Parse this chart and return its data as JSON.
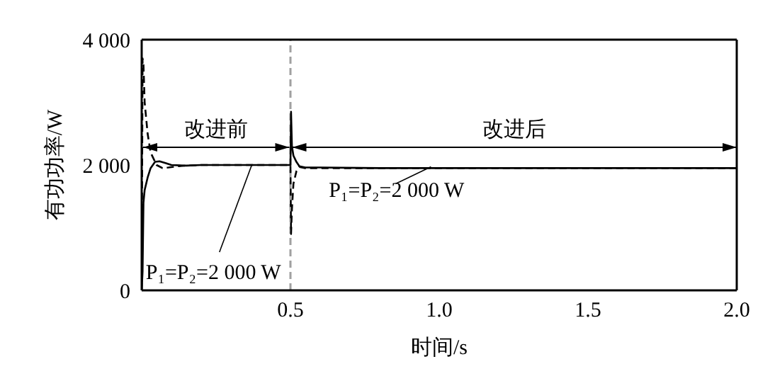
{
  "chart_data": {
    "type": "line",
    "xlabel": "时间/s",
    "ylabel": "有功功率/W",
    "xlim": [
      0,
      2
    ],
    "ylim": [
      0,
      4000
    ],
    "xticks": [
      {
        "value": 0,
        "label": null
      },
      {
        "value": 0.5,
        "label": "0.5"
      },
      {
        "value": 1,
        "label": "1.0"
      },
      {
        "value": 1.5,
        "label": "1.5"
      },
      {
        "value": 2,
        "label": "2.0"
      }
    ],
    "yticks": [
      0,
      {
        "value": 2000,
        "label": "2 000"
      },
      {
        "value": 4000,
        "label": "4 000"
      }
    ],
    "marker": "none",
    "series": [
      {
        "color": "#000000",
        "line_style": "solid",
        "x": [
          0,
          0.003,
          0.006,
          0.01,
          0.02,
          0.03,
          0.045,
          0.06,
          0.08,
          0.1,
          0.15,
          0.2,
          0.3,
          0.4,
          0.5,
          0.502,
          0.505,
          0.51,
          0.52,
          0.53,
          0.55,
          0.6,
          0.8,
          1.0,
          1.2,
          1.4,
          1.6,
          1.8,
          2.0
        ],
        "values": [
          0,
          300,
          1400,
          1600,
          1800,
          1950,
          2050,
          2060,
          2030,
          2000,
          1990,
          2000,
          2000,
          2000,
          2000,
          2850,
          2300,
          2150,
          2050,
          1980,
          1960,
          1960,
          1950,
          1950,
          1950,
          1950,
          1950,
          1950,
          1950
        ]
      },
      {
        "color": "#000000",
        "line_style": "dashed",
        "x": [
          0,
          0.003,
          0.006,
          0.01,
          0.02,
          0.03,
          0.05,
          0.07,
          0.09,
          0.12,
          0.15,
          0.2,
          0.3,
          0.4,
          0.5,
          0.502,
          0.505,
          0.51,
          0.52,
          0.53,
          0.55,
          0.6,
          0.8,
          1.0,
          1.5,
          2.0
        ],
        "values": [
          0,
          3700,
          3600,
          3000,
          2500,
          2200,
          2000,
          1950,
          1960,
          1980,
          1990,
          2000,
          2000,
          2000,
          2000,
          900,
          1300,
          1700,
          1900,
          1970,
          1950,
          1950,
          1950,
          1950,
          1950,
          1950
        ]
      }
    ],
    "ref_lines": [
      {
        "axis": "x",
        "value": 0.5,
        "color": "#a0a0a0",
        "line_style": "dashed"
      }
    ],
    "annotations": [
      "改进前",
      "改进后",
      {
        "text": "P₁=P₂=2 000 W",
        "x": 0.37,
        "y": 2000
      },
      {
        "text": "P₁=P₂=2 000 W",
        "x": 0.97,
        "y": 1960
      }
    ]
  }
}
